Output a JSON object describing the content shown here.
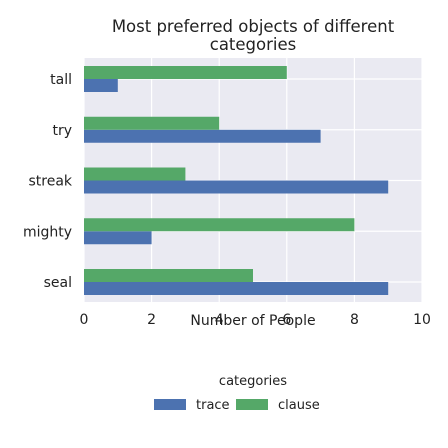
{
  "chart_data": {
    "type": "bar",
    "orientation": "horizontal",
    "title": [
      "Most preferred objects of different",
      "categories"
    ],
    "xlabel": "Number of People",
    "ylabel": "",
    "categories": [
      "tall",
      "try",
      "streak",
      "mighty",
      "seal"
    ],
    "series": [
      {
        "name": "trace",
        "color": "#4c72b0",
        "values": [
          1,
          7,
          9,
          2,
          9
        ]
      },
      {
        "name": "clause",
        "color": "#55a868",
        "values": [
          6,
          4,
          3,
          8,
          5
        ]
      }
    ],
    "xlim": [
      0,
      10
    ],
    "xticks": [
      0,
      2,
      4,
      6,
      8,
      10
    ],
    "grid": true,
    "legend": {
      "title": "categories",
      "position": "bottom"
    },
    "colors": {
      "plot_background": "#eaeaf2",
      "grid": "#ffffff"
    }
  }
}
